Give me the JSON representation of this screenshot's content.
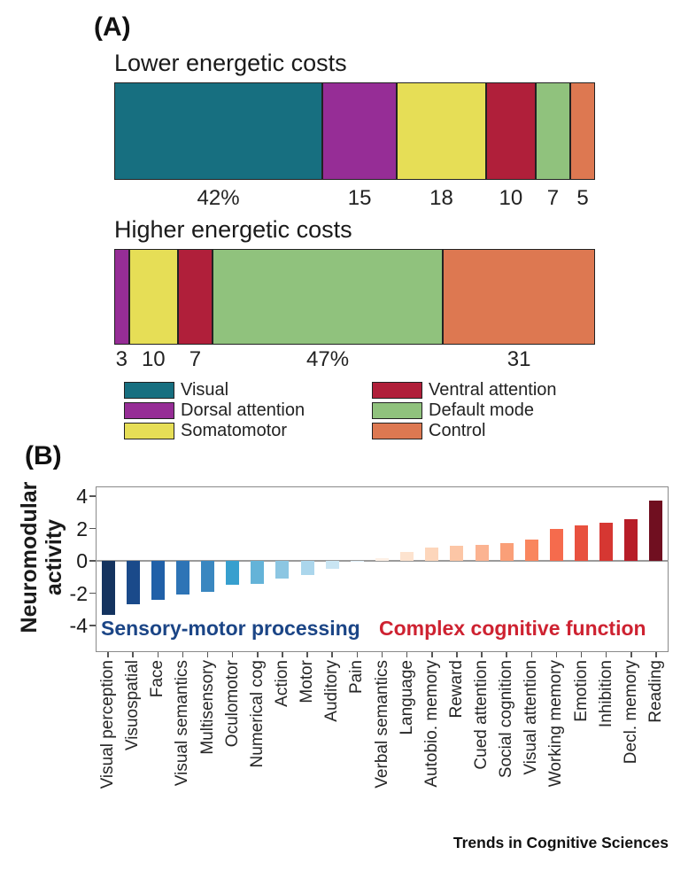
{
  "panel_a": {
    "label": "(A)",
    "legend": [
      {
        "label": "Visual",
        "color": "#176f80"
      },
      {
        "label": "Dorsal attention",
        "color": "#962d96"
      },
      {
        "label": "Somatomotor",
        "color": "#e6de56"
      },
      {
        "label": "Ventral attention",
        "color": "#b01f3a"
      },
      {
        "label": "Default mode",
        "color": "#90c27d"
      },
      {
        "label": "Control",
        "color": "#dd7851"
      }
    ]
  },
  "panel_b": {
    "label": "(B)",
    "ylabel_lines": [
      "Neuromodular",
      "activity"
    ],
    "yticks": [
      4,
      2,
      0,
      -2,
      -4
    ],
    "annotations": [
      {
        "text": "Sensory-motor processing",
        "color": "#1b4586"
      },
      {
        "text": "Complex cognitive function",
        "color": "#ce2231"
      }
    ]
  },
  "footer": {
    "journal": "Trends in Cognitive Sciences"
  },
  "chart_data": [
    {
      "type": "bar",
      "subtype": "horizontal-stacked",
      "title": "Lower energetic costs",
      "categories": [
        "Visual",
        "Dorsal attention",
        "Somatomotor",
        "Ventral attention",
        "Default mode",
        "Control"
      ],
      "values": [
        42,
        15,
        18,
        10,
        7,
        5
      ],
      "value_labels": [
        "42%",
        "15",
        "18",
        "10",
        "7",
        "5"
      ],
      "unit": "percent of networks at lower energetic cost"
    },
    {
      "type": "bar",
      "subtype": "horizontal-stacked",
      "title": "Higher energetic costs",
      "categories": [
        "Dorsal attention",
        "Somatomotor",
        "Ventral attention",
        "Default mode",
        "Control"
      ],
      "values": [
        3,
        10,
        7,
        47,
        31
      ],
      "value_labels": [
        "3",
        "10",
        "7",
        "47%",
        "31"
      ],
      "unit": "percent of networks at higher energetic cost"
    },
    {
      "type": "bar",
      "title": "",
      "ylabel": "Neuromodular activity",
      "ylim": [
        -5.6,
        4.6
      ],
      "yticks": [
        4,
        2,
        0,
        -2,
        -4
      ],
      "grid": false,
      "legend_position": "none",
      "categories": [
        "Visual perception",
        "Visuospatial",
        "Face",
        "Visual semantics",
        "Multisensory",
        "Oculomotor",
        "Numerical cog",
        "Action",
        "Motor",
        "Auditory",
        "Pain",
        "Verbal semantics",
        "Language",
        "Autobio. memory",
        "Reward",
        "Cued attention",
        "Social cognition",
        "Visual attention",
        "Working memory",
        "Emotion",
        "Inhibition",
        "Decl. memory",
        "Reading"
      ],
      "values": [
        -3.35,
        -2.7,
        -2.4,
        -2.1,
        -1.9,
        -1.5,
        -1.4,
        -1.1,
        -0.9,
        -0.5,
        -0.05,
        0.15,
        0.55,
        0.8,
        0.95,
        1.0,
        1.1,
        1.3,
        2.0,
        2.2,
        2.35,
        2.6,
        3.7
      ],
      "colors": [
        "#14335f",
        "#1a4a8a",
        "#2060a8",
        "#2e74b6",
        "#3a87c0",
        "#379fce",
        "#64b3d8",
        "#8cc6e2",
        "#abd6ec",
        "#c9e5f3",
        "#ddeef8",
        "#fdf0e5",
        "#fde3cf",
        "#fdd6bb",
        "#fcc6a6",
        "#fbb391",
        "#fa9f78",
        "#f9865e",
        "#f56b4d",
        "#e8513f",
        "#d63732",
        "#b71d28",
        "#700f20"
      ],
      "annotations": [
        {
          "text": "Sensory-motor processing",
          "color": "#1b4586",
          "side": "left"
        },
        {
          "text": "Complex cognitive function",
          "color": "#ce2231",
          "side": "right"
        }
      ]
    }
  ]
}
